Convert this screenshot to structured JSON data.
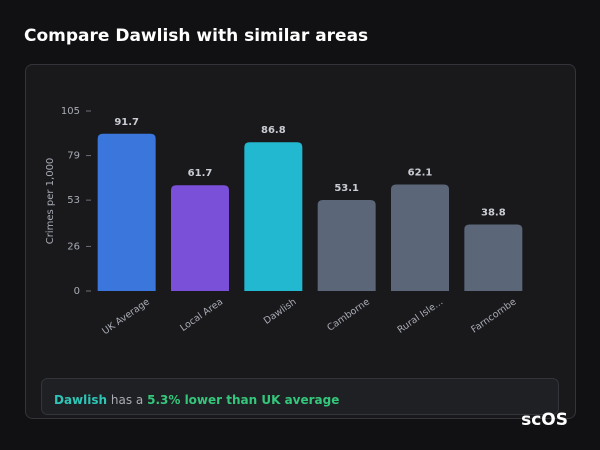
{
  "chart_data": {
    "type": "bar",
    "title": "Compare Dawlish with similar areas",
    "y_label": "Crimes per 1,000",
    "categories": [
      "UK Average",
      "Local Area",
      "Dawlish",
      "Camborne",
      "Rural Isle...",
      "Farncombe"
    ],
    "values": [
      91.7,
      61.7,
      86.8,
      53.1,
      62.1,
      38.8
    ],
    "colors": [
      "#3a76db",
      "#7b50d8",
      "#22b8cf",
      "#5b6678",
      "#5b6678",
      "#5b6678"
    ],
    "ylim": [
      0,
      105
    ],
    "yticks": [
      0,
      26,
      53,
      79,
      105
    ],
    "grid": false
  },
  "summary": {
    "area": "Dawlish",
    "text": "has a",
    "highlight": "5.3% lower than UK average"
  },
  "logo": "scOS"
}
